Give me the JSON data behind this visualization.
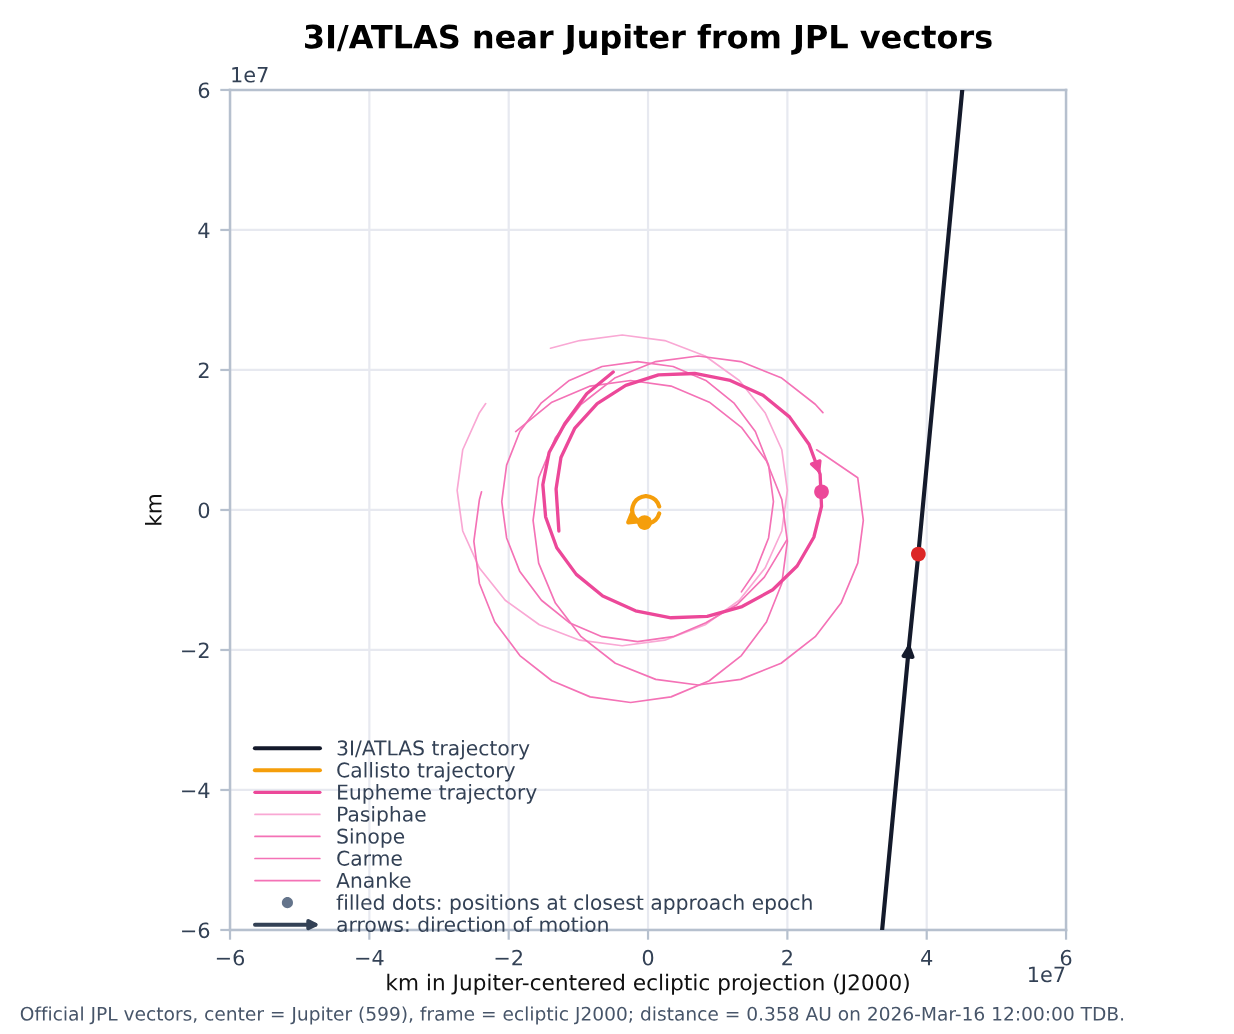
{
  "chart_data": {
    "type": "line",
    "title": "3I/ATLAS near Jupiter from JPL vectors",
    "xlabel": "km in Jupiter-centered ecliptic projection (J2000)",
    "ylabel": "km",
    "xlim": [
      -6,
      6
    ],
    "ylim": [
      -6,
      6
    ],
    "xticks": [
      {
        "value": -6,
        "label": "−6"
      },
      {
        "value": -4,
        "label": "−4"
      },
      {
        "value": -2,
        "label": "−2"
      },
      0,
      2,
      4,
      6
    ],
    "yticks": [
      {
        "value": -6,
        "label": "−6"
      },
      {
        "value": -4,
        "label": "−4"
      },
      {
        "value": -2,
        "label": "−2"
      },
      0,
      2,
      4,
      6
    ],
    "grid": true,
    "legend": "bottom left",
    "annotations": [
      "1e7",
      "1e7",
      "Official JPL vectors, center = Jupiter (599), frame = ecliptic J2000; distance = 0.358 AU on 2026-Mar-16 12:00:00 TDB.",
      "filled dots: positions at closest approach epoch",
      "arrows: direction of motion"
    ],
    "series": [
      {
        "name": "3I/ATLAS trajectory",
        "color": "#141a2b",
        "x": [
          3.36,
          3.75,
          3.88,
          4.51
        ],
        "values": [
          -6,
          -1.9,
          -0.63,
          6
        ]
      },
      {
        "name": "Callisto trajectory",
        "color": "#f59e0b",
        "x": [
          0.16,
          0.14,
          0.11,
          0.07,
          0.02,
          -0.03,
          -0.08,
          -0.13,
          -0.17,
          -0.2,
          -0.22,
          -0.23,
          -0.22,
          -0.2,
          -0.17,
          -0.13,
          -0.08,
          -0.03,
          0.02,
          0.07,
          0.11,
          0.14,
          0.16
        ],
        "values": [
          0.05,
          0.1,
          0.14,
          0.17,
          0.19,
          0.2,
          0.19,
          0.17,
          0.14,
          0.1,
          0.05,
          0,
          -0.05,
          -0.1,
          -0.14,
          -0.17,
          -0.19,
          -0.2,
          -0.19,
          -0.17,
          -0.14,
          -0.1,
          -0.05
        ]
      },
      {
        "name": "Eupheme trajectory",
        "color": "#ec4899",
        "x": [
          -1.28,
          -1.32,
          -1.25,
          -1.05,
          -0.73,
          -0.32,
          0.15,
          0.67,
          1.18,
          1.65,
          2.03,
          2.31,
          2.47,
          2.49,
          2.38,
          2.14,
          1.79,
          1.35,
          0.85,
          0.33,
          -0.18,
          -0.65,
          -1.03,
          -1.31,
          -1.47,
          -1.51,
          -1.42,
          -1.19,
          -0.88,
          -0.5
        ],
        "values": [
          -0.3,
          0.3,
          0.75,
          1.17,
          1.52,
          1.78,
          1.93,
          1.95,
          1.85,
          1.64,
          1.33,
          0.94,
          0.51,
          0.05,
          -0.39,
          -0.8,
          -1.14,
          -1.38,
          -1.52,
          -1.54,
          -1.44,
          -1.23,
          -0.92,
          -0.54,
          -0.1,
          0.36,
          0.82,
          1.24,
          1.66,
          1.97
        ]
      },
      {
        "name": "Pasiphae",
        "color": "#f9a8d4",
        "x": [
          -1.4,
          -0.98,
          -0.37,
          0.24,
          0.82,
          1.31,
          1.68,
          1.92,
          2.0,
          1.92,
          1.68,
          1.31,
          0.82,
          0.24,
          -0.37,
          -0.98,
          -1.56,
          -2.05,
          -2.42,
          -2.66,
          -2.74,
          -2.66,
          -2.42,
          -2.33
        ],
        "values": [
          2.31,
          2.42,
          2.5,
          2.42,
          2.2,
          1.85,
          1.39,
          0.86,
          0.28,
          -0.3,
          -0.83,
          -1.29,
          -1.64,
          -1.86,
          -1.94,
          -1.86,
          -1.64,
          -1.29,
          -0.83,
          -0.3,
          0.28,
          0.86,
          1.39,
          1.52
        ]
      },
      {
        "name": "Sinope",
        "color": "#f472b6",
        "x": [
          -1.9,
          -1.38,
          -0.83,
          -0.25,
          0.33,
          0.88,
          1.34,
          1.7,
          1.92,
          2.0,
          1.92,
          1.7,
          1.34,
          0.88,
          0.33,
          -0.25,
          -0.83,
          -1.38,
          -1.84,
          -2.2,
          -2.42,
          -2.5,
          -2.42,
          -2.39
        ],
        "values": [
          1.12,
          1.54,
          1.77,
          1.85,
          1.77,
          1.54,
          1.18,
          0.7,
          0.15,
          -0.45,
          -1.05,
          -1.6,
          -2.08,
          -2.44,
          -2.67,
          -2.75,
          -2.67,
          -2.44,
          -2.08,
          -1.6,
          -1.05,
          -0.45,
          0.15,
          0.26
        ]
      },
      {
        "name": "Carme",
        "color": "#f472b6",
        "x": [
          2.42,
          3.01,
          3.09,
          3.01,
          2.77,
          2.4,
          1.91,
          1.33,
          0.72,
          0.11,
          -0.47,
          -0.96,
          -1.33,
          -1.57,
          -1.65,
          -1.57,
          -1.33,
          -0.96,
          -0.47,
          0.11,
          0.72,
          1.33,
          1.91,
          2.4,
          2.51
        ],
        "values": [
          0.86,
          0.46,
          -0.15,
          -0.76,
          -1.33,
          -1.81,
          -2.19,
          -2.42,
          -2.5,
          -2.42,
          -2.19,
          -1.81,
          -1.33,
          -0.76,
          -0.15,
          0.46,
          1.03,
          1.51,
          1.89,
          2.12,
          2.2,
          2.12,
          1.89,
          1.51,
          1.39
        ]
      },
      {
        "name": "Ananke",
        "color": "#f472b6",
        "x": [
          1.99,
          1.67,
          1.28,
          0.83,
          0.36,
          -0.15,
          -0.66,
          -1.13,
          -1.53,
          -1.84,
          -2.03,
          -2.1,
          -2.03,
          -1.84,
          -1.53,
          -1.13,
          -0.66,
          -0.15,
          0.36,
          0.83,
          1.23,
          1.54,
          1.73,
          1.8,
          1.73,
          1.54,
          1.34
        ],
        "values": [
          -0.43,
          -0.96,
          -1.35,
          -1.61,
          -1.81,
          -1.88,
          -1.81,
          -1.61,
          -1.29,
          -0.88,
          -0.4,
          0.12,
          0.64,
          1.12,
          1.53,
          1.85,
          2.05,
          2.12,
          2.05,
          1.85,
          1.53,
          1.12,
          0.64,
          0.12,
          -0.4,
          -0.88,
          -1.17
        ]
      },
      {
        "type": "scatter",
        "marker": "circle",
        "colors": [
          "#dc2626",
          "#f59e0b",
          "#ec4899"
        ],
        "x": [
          3.88,
          -0.05,
          2.49
        ],
        "values": [
          -0.63,
          -0.18,
          0.26
        ]
      }
    ]
  }
}
